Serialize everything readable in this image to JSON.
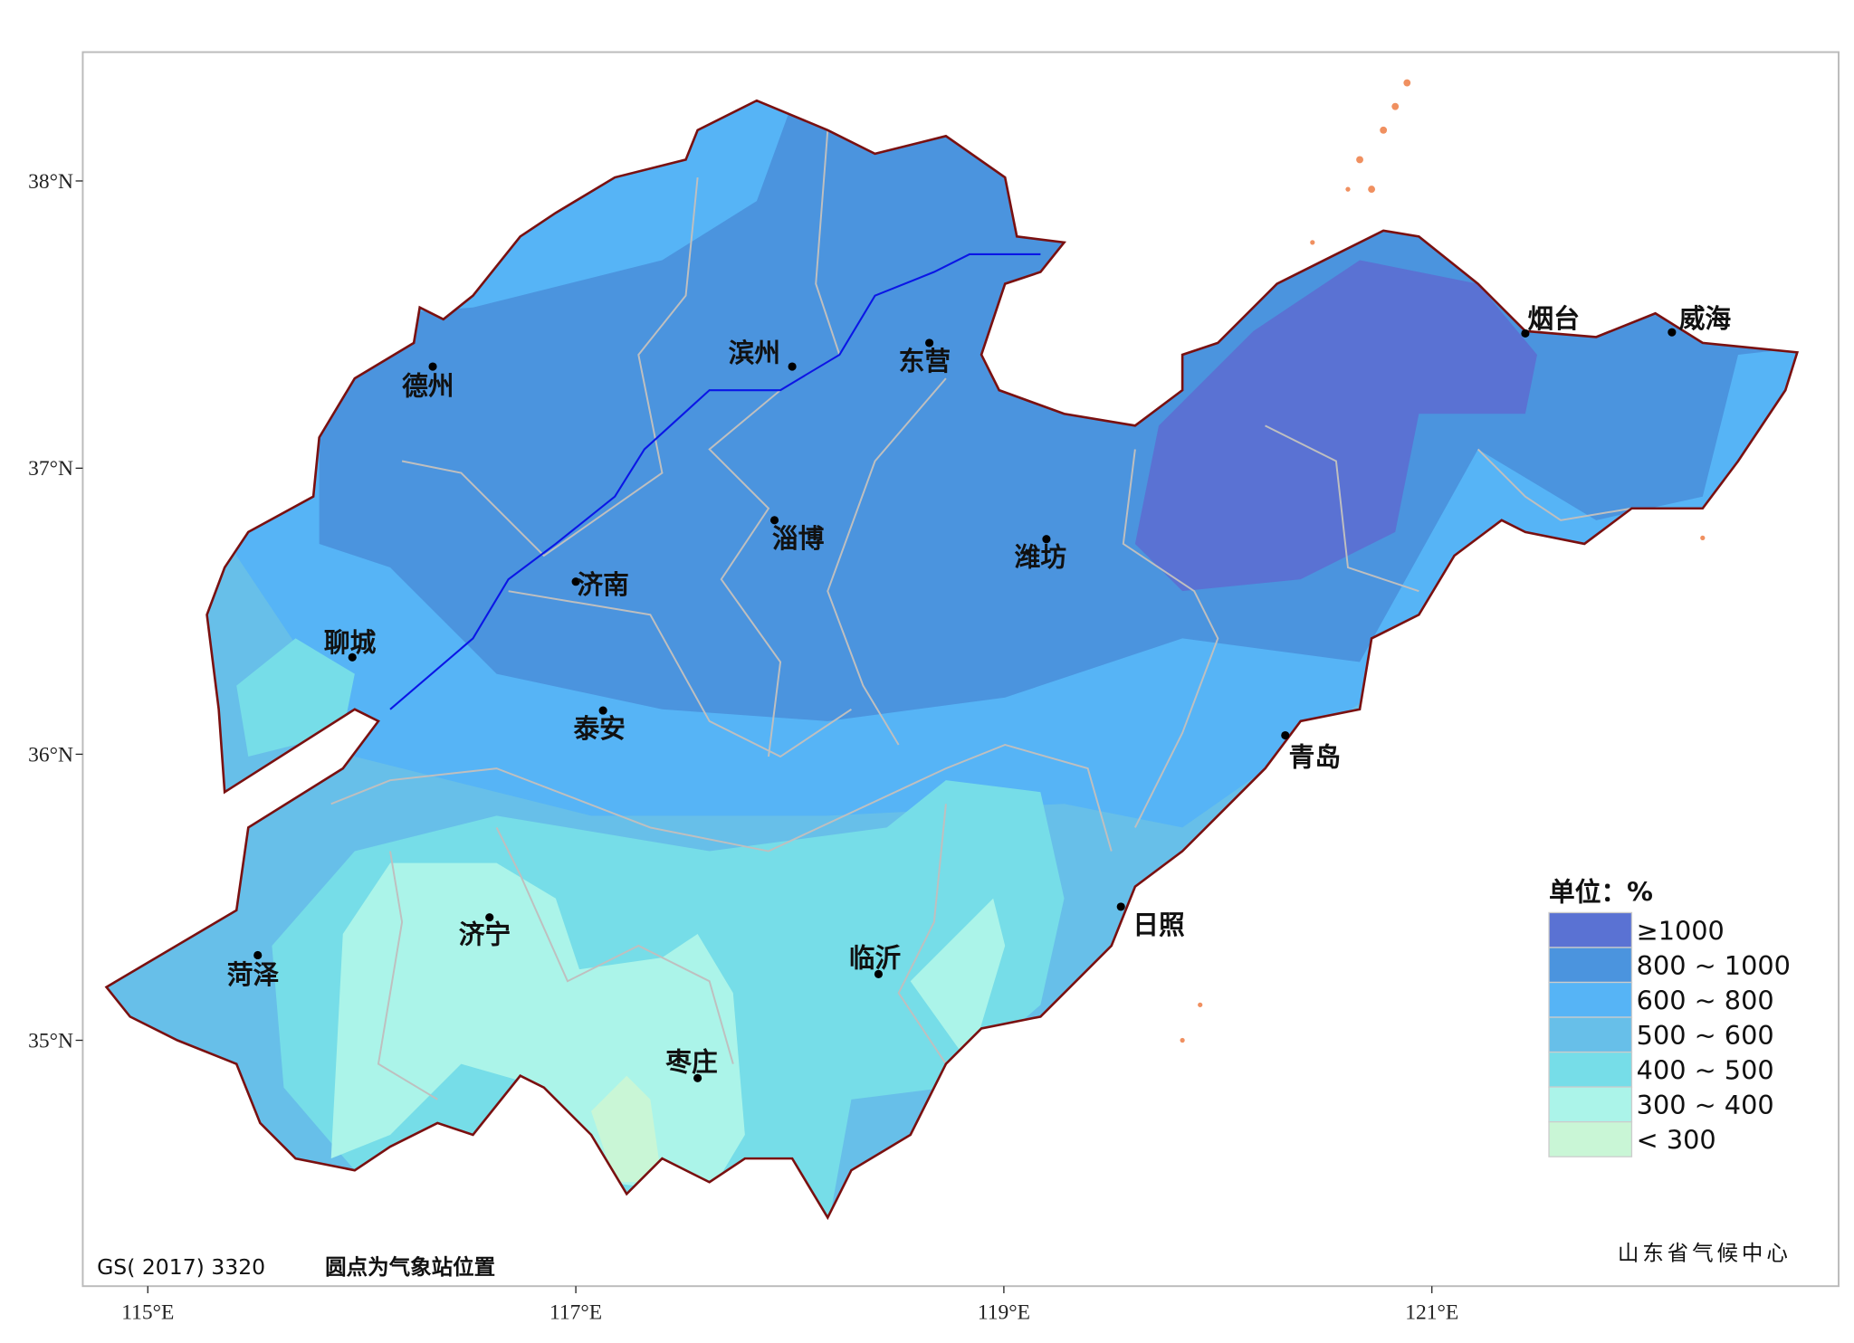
{
  "map": {
    "lon_ticks": [
      "115°E",
      "117°E",
      "119°E",
      "121°E"
    ],
    "lat_ticks": [
      "38°N",
      "37°N",
      "36°N",
      "35°N"
    ],
    "cities": [
      "德州",
      "滨州",
      "东营",
      "烟台",
      "威海",
      "淄博",
      "潍坊",
      "济南",
      "聊城",
      "泰安",
      "青岛",
      "济宁",
      "日照",
      "菏泽",
      "临沂",
      "枣庄"
    ],
    "legend": {
      "title": "单位：%",
      "items": [
        {
          "label": "≥1000",
          "color": "#5a72d3"
        },
        {
          "label": "800 ~ 1000",
          "color": "#4b94de"
        },
        {
          "label": "600 ~ 800",
          "color": "#56b4f6"
        },
        {
          "label": "500 ~ 600",
          "color": "#67bfe9"
        },
        {
          "label": "400 ~ 500",
          "color": "#76dde8"
        },
        {
          "label": "300 ~ 400",
          "color": "#abf4e9"
        },
        {
          "label": "< 300",
          "color": "#c9f6d6"
        }
      ]
    },
    "footer": {
      "code": "GS( 2017) 3320",
      "note": "圆点为气象站位置",
      "source": "山东省气候中心"
    }
  }
}
